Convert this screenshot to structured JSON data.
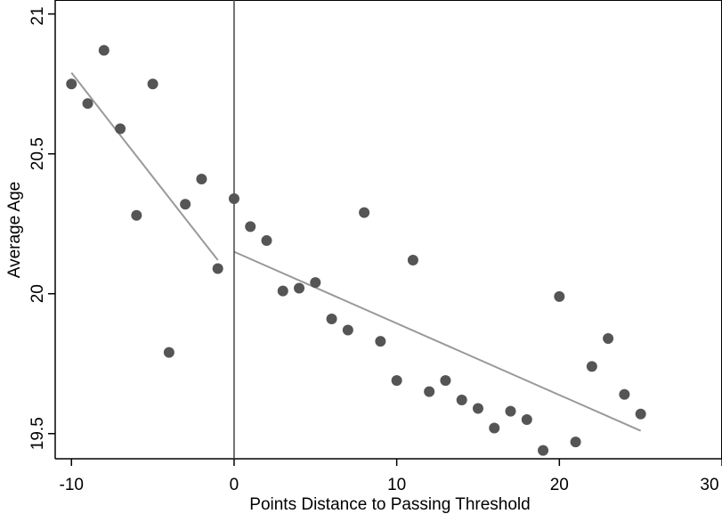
{
  "chart_data": {
    "type": "scatter",
    "title": "",
    "xlabel": "Points Distance to Passing Threshold",
    "ylabel": "Average Age",
    "xlim": [
      -11,
      30
    ],
    "ylim": [
      19.41,
      21.05
    ],
    "x_ticks": [
      -10,
      0,
      10,
      20,
      30
    ],
    "x_tick_labels": [
      "-10",
      "0",
      "10",
      "20",
      "30"
    ],
    "y_ticks": [
      19.5,
      20,
      20.5,
      21
    ],
    "y_tick_labels": [
      "19.5",
      "20",
      "20.5",
      "21"
    ],
    "grid": false,
    "legend": "none",
    "cutoff_x": 0,
    "points": {
      "x": [
        -10,
        -9,
        -8,
        -7,
        -6,
        -5,
        -4,
        -3,
        -2,
        -1,
        0,
        1,
        2,
        3,
        4,
        5,
        6,
        7,
        8,
        9,
        10,
        11,
        12,
        13,
        14,
        15,
        16,
        17,
        18,
        19,
        20,
        21,
        22,
        23,
        24,
        25
      ],
      "y": [
        20.75,
        20.68,
        20.87,
        20.59,
        20.28,
        20.75,
        19.79,
        20.32,
        20.41,
        20.09,
        20.34,
        20.24,
        20.19,
        20.01,
        20.02,
        20.04,
        19.91,
        19.87,
        20.29,
        19.83,
        19.69,
        20.12,
        19.65,
        19.69,
        19.62,
        19.59,
        19.52,
        19.58,
        19.55,
        19.44,
        19.99,
        19.47,
        19.74,
        19.84,
        19.64,
        19.57
      ]
    },
    "fit_lines": [
      {
        "x": [
          -10,
          -1
        ],
        "y": [
          20.79,
          20.12
        ]
      },
      {
        "x": [
          0,
          25
        ],
        "y": [
          20.15,
          19.51
        ]
      }
    ],
    "colors": {
      "points": "#555555",
      "fit_line": "#999999",
      "axis": "#000000",
      "cutoff_line": "#444444"
    }
  }
}
